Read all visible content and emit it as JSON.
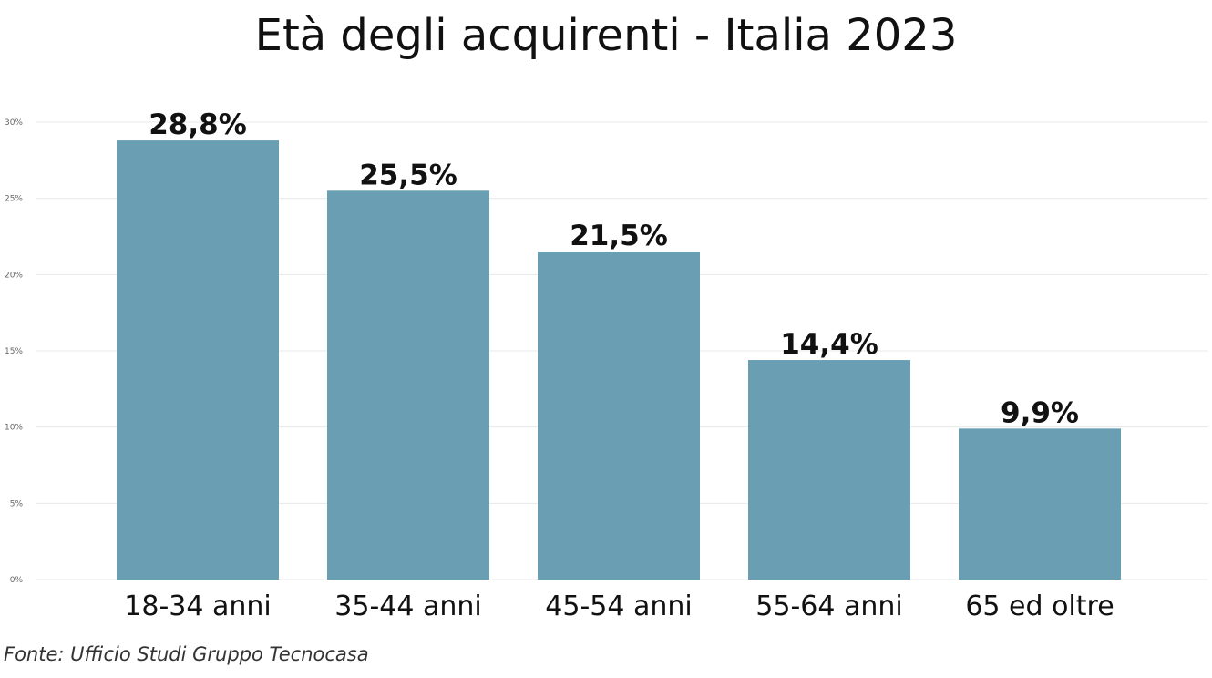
{
  "chart_data": {
    "type": "bar",
    "title": "Età degli acquirenti - Italia 2023",
    "categories": [
      "18-34 anni",
      "35-44 anni",
      "45-54 anni",
      "55-64 anni",
      "65 ed oltre"
    ],
    "values": [
      28.8,
      25.5,
      21.5,
      14.4,
      9.9
    ],
    "data_labels": [
      "28,8%",
      "25,5%",
      "21,5%",
      "14,4%",
      "9,9%"
    ],
    "ylim": [
      0,
      30
    ],
    "yticks": [
      0,
      5,
      10,
      15,
      20,
      25,
      30
    ],
    "ytick_labels": [
      "0%",
      "5%",
      "10%",
      "15%",
      "20%",
      "25%",
      "30%"
    ],
    "xlabel": "",
    "ylabel": "",
    "grid": true,
    "bar_color": "#6a9fb3",
    "gridline_color": "#e8e8e8"
  },
  "source": "Fonte: Ufficio Studi Gruppo Tecnocasa"
}
